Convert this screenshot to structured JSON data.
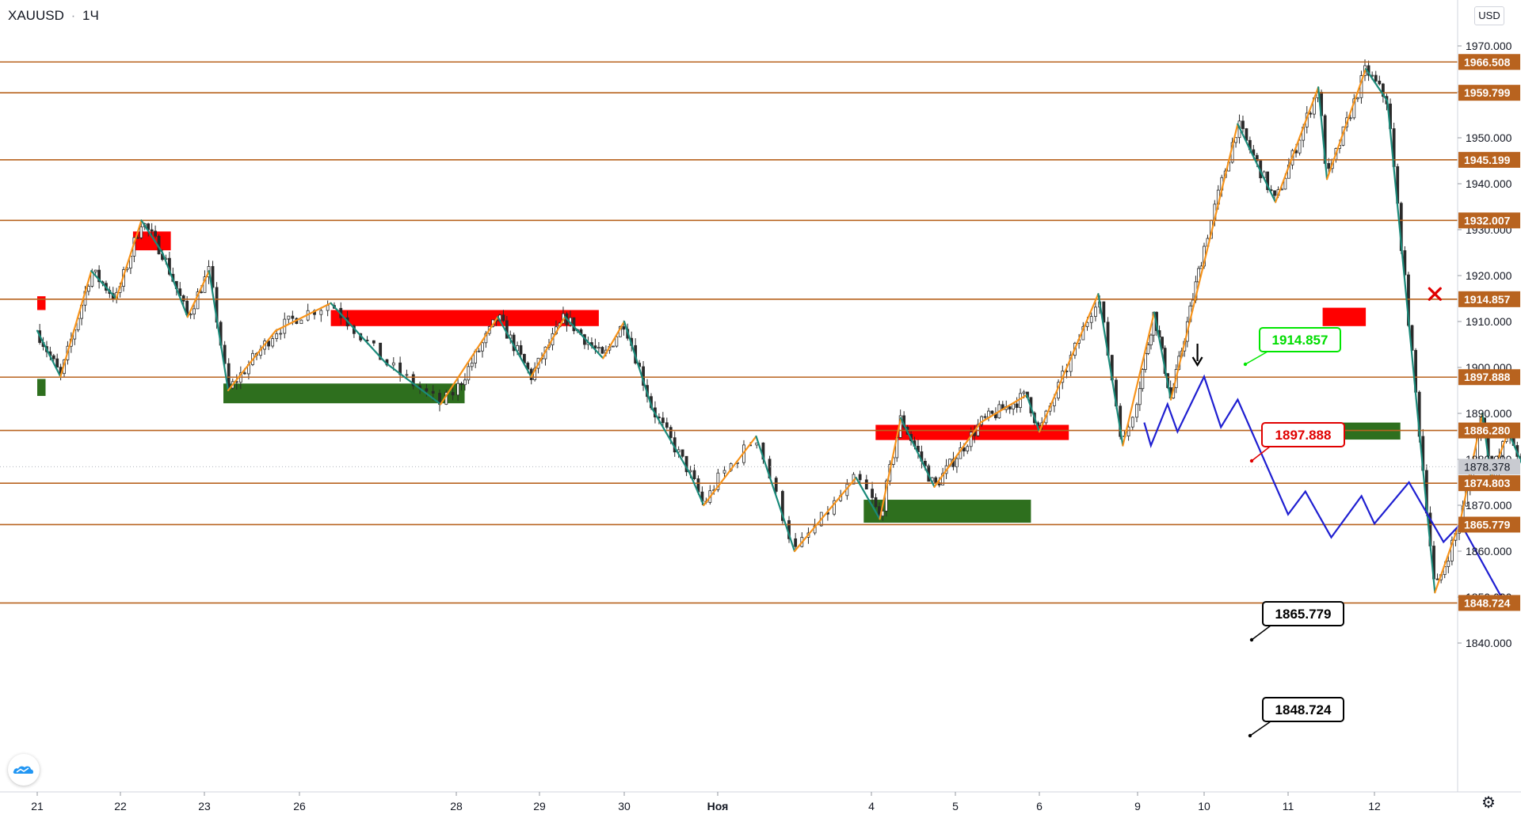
{
  "header": {
    "symbol": "XAUUSD",
    "separator": "·",
    "interval": "1Ч",
    "currency_button": "USD"
  },
  "chart_data": {
    "type": "candlestick",
    "price_axis": {
      "ticks": [
        1840,
        1850,
        1860,
        1870,
        1880,
        1890,
        1900,
        1910,
        1920,
        1930,
        1940,
        1950,
        1960,
        1970
      ],
      "range": [
        1838,
        1979
      ]
    },
    "time_axis": {
      "labels": [
        "21",
        "22",
        "23",
        "26",
        "28",
        "29",
        "30",
        "Ноя",
        "4",
        "5",
        "6",
        "9",
        "10",
        "11",
        "12"
      ]
    },
    "current_price": {
      "value": 1878.378,
      "label": "1878.378"
    },
    "levels": [
      {
        "value": 1966.508,
        "label": "1966.508"
      },
      {
        "value": 1959.799,
        "label": "1959.799"
      },
      {
        "value": 1945.199,
        "label": "1945.199"
      },
      {
        "value": 1932.007,
        "label": "1932.007"
      },
      {
        "value": 1914.857,
        "label": "1914.857"
      },
      {
        "value": 1897.888,
        "label": "1897.888"
      },
      {
        "value": 1886.28,
        "label": "1886.280"
      },
      {
        "value": 1874.803,
        "label": "1874.803"
      },
      {
        "value": 1865.779,
        "label": "1865.779"
      },
      {
        "value": 1848.724,
        "label": "1848.724"
      }
    ],
    "callouts": [
      {
        "text": "1914.857",
        "value": 1914.857,
        "color": "#00e600"
      },
      {
        "text": "1897.888",
        "value": 1897.888,
        "color": "#e00000"
      },
      {
        "text": "1865.779",
        "value": 1865.779,
        "color": "#000000"
      },
      {
        "text": "1848.724",
        "value": 1848.724,
        "color": "#000000"
      }
    ],
    "supply_zones": [
      {
        "t": [
          0,
          0.1
        ],
        "price": [
          1915.5,
          1912.5
        ]
      },
      {
        "t": [
          1.15,
          1.6
        ],
        "price": [
          1929.6,
          1925.5
        ]
      },
      {
        "t": [
          3.2,
          5.7
        ],
        "price": [
          1912.5,
          1909
        ]
      },
      {
        "t": [
          8.05,
          10.3
        ],
        "price": [
          1887.5,
          1884.2
        ]
      },
      {
        "t": [
          13.4,
          13.9
        ],
        "price": [
          1913,
          1909
        ]
      }
    ],
    "demand_zones": [
      {
        "t": [
          0,
          0.1
        ],
        "price": [
          1897.5,
          1893.8
        ]
      },
      {
        "t": [
          2.2,
          4.1
        ],
        "price": [
          1896.5,
          1892.2
        ]
      },
      {
        "t": [
          7.95,
          9.9
        ],
        "price": [
          1871.2,
          1866.2
        ]
      },
      {
        "t": [
          13.1,
          14.3
        ],
        "price": [
          1888,
          1884.3
        ]
      }
    ],
    "series": [
      {
        "color_up": "#f7931a",
        "color_down": "#1a8a7a",
        "points": [
          {
            "t": 0,
            "p": 1908
          },
          {
            "t": 0.28,
            "p": 1898
          },
          {
            "t": 0.65,
            "p": 1921
          },
          {
            "t": 0.95,
            "p": 1915
          },
          {
            "t": 1.25,
            "p": 1932
          },
          {
            "t": 1.5,
            "p": 1925
          },
          {
            "t": 1.8,
            "p": 1911
          },
          {
            "t": 2.05,
            "p": 1921
          },
          {
            "t": 2.25,
            "p": 1895
          },
          {
            "t": 2.75,
            "p": 1908
          },
          {
            "t": 3.2,
            "p": 1914
          },
          {
            "t": 3.55,
            "p": 1901
          },
          {
            "t": 3.9,
            "p": 1892
          },
          {
            "t": 4.5,
            "p": 1911
          },
          {
            "t": 4.9,
            "p": 1898
          },
          {
            "t": 5.3,
            "p": 1911
          },
          {
            "t": 5.75,
            "p": 1902
          },
          {
            "t": 6.0,
            "p": 1910
          },
          {
            "t": 6.3,
            "p": 1891
          },
          {
            "t": 6.7,
            "p": 1877
          },
          {
            "t": 6.85,
            "p": 1870
          },
          {
            "t": 7.25,
            "p": 1885
          },
          {
            "t": 7.5,
            "p": 1860
          },
          {
            "t": 7.9,
            "p": 1876
          },
          {
            "t": 8.1,
            "p": 1867
          },
          {
            "t": 8.35,
            "p": 1889
          },
          {
            "t": 8.75,
            "p": 1874
          },
          {
            "t": 9.3,
            "p": 1888
          },
          {
            "t": 9.85,
            "p": 1894
          },
          {
            "t": 10.0,
            "p": 1886
          },
          {
            "t": 10.6,
            "p": 1916
          },
          {
            "t": 10.85,
            "p": 1883
          },
          {
            "t": 11.25,
            "p": 1912
          },
          {
            "t": 11.5,
            "p": 1893
          },
          {
            "t": 12.4,
            "p": 1953
          },
          {
            "t": 12.85,
            "p": 1936
          },
          {
            "t": 13.35,
            "p": 1961
          },
          {
            "t": 13.45,
            "p": 1941
          },
          {
            "t": 13.9,
            "p": 1965
          },
          {
            "t": 14.15,
            "p": 1958
          },
          {
            "t": 14.7,
            "p": 1851
          },
          {
            "t": 15.0,
            "p": 1867
          },
          {
            "t": 15.25,
            "p": 1890
          },
          {
            "t": 15.35,
            "p": 1876
          },
          {
            "t": 15.55,
            "p": 1886
          },
          {
            "t": 15.8,
            "p": 1875
          }
        ]
      },
      {
        "name": "",
        "color": "#1f1fd1",
        "points": [
          {
            "t": 11.1,
            "p": 1888
          },
          {
            "t": 11.2,
            "p": 1883
          },
          {
            "t": 11.45,
            "p": 1892
          },
          {
            "t": 11.6,
            "p": 1886
          },
          {
            "t": 12.0,
            "p": 1898
          },
          {
            "t": 12.2,
            "p": 1887
          },
          {
            "t": 12.4,
            "p": 1893
          },
          {
            "t": 13.0,
            "p": 1868
          },
          {
            "t": 13.2,
            "p": 1873
          },
          {
            "t": 13.5,
            "p": 1863
          },
          {
            "t": 13.85,
            "p": 1872
          },
          {
            "t": 14.0,
            "p": 1866
          },
          {
            "t": 14.4,
            "p": 1875
          },
          {
            "t": 14.8,
            "p": 1862
          },
          {
            "t": 15.0,
            "p": 1866
          },
          {
            "t": 15.5,
            "p": 1849
          }
        ]
      }
    ],
    "markers": [
      {
        "type": "arrow-down",
        "t": 11.9,
        "p": 1900
      },
      {
        "type": "cross",
        "t": 14.7,
        "p": 1916
      }
    ]
  }
}
